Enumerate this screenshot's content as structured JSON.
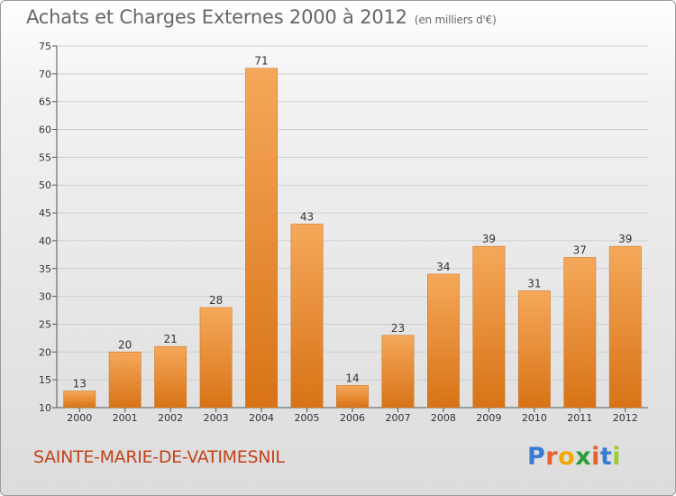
{
  "header": {
    "title": "Achats et Charges Externes 2000 à 2012",
    "subtitle": "(en milliers d'€)"
  },
  "commune": "SAINTE-MARIE-DE-VATIMESNIL",
  "logo": {
    "text": "Proxiti",
    "letter_colors": [
      "#3a7bd5",
      "#e8622c",
      "#f2a900",
      "#2e9e3a",
      "#e8622c",
      "#3a7bd5",
      "#9acd32"
    ]
  },
  "colors": {
    "bar_light": "#f5a85a",
    "bar_dark": "#d87316",
    "grid": "#cfcfcf"
  },
  "chart_data": {
    "type": "bar",
    "title": "Achats et Charges Externes 2000 à 2012",
    "subtitle": "(en milliers d'€)",
    "categories": [
      "2000",
      "2001",
      "2002",
      "2003",
      "2004",
      "2005",
      "2006",
      "2007",
      "2008",
      "2009",
      "2010",
      "2011",
      "2012"
    ],
    "values": [
      13,
      20,
      21,
      28,
      71,
      43,
      14,
      23,
      34,
      39,
      31,
      37,
      39
    ],
    "ylim": [
      10,
      75
    ],
    "yticks": [
      10,
      15,
      20,
      25,
      30,
      35,
      40,
      45,
      50,
      55,
      60,
      65,
      70,
      75
    ],
    "grid": true,
    "data_labels": true
  }
}
